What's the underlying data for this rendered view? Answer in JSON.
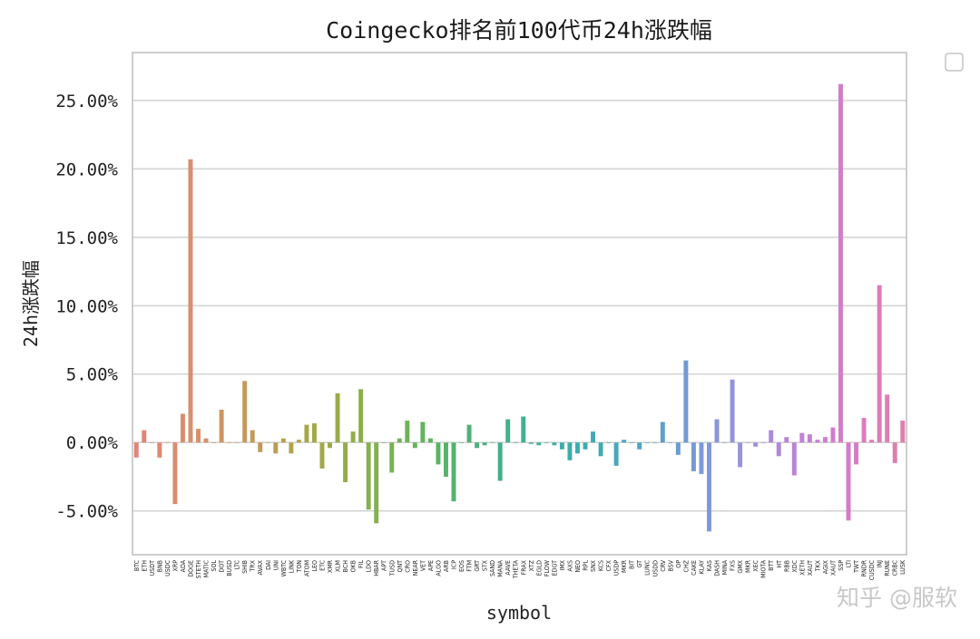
{
  "watermark": "知乎 @服软",
  "chart_data": {
    "type": "bar",
    "title": "Coingecko排名前100代币24h涨跌幅",
    "xlabel": "symbol",
    "ylabel": "24h涨跌幅",
    "ylim": [
      -8.2,
      28.5
    ],
    "yticks": [
      -5,
      0,
      5,
      10,
      15,
      20,
      25
    ],
    "ytick_labels": [
      "-5.00%",
      "0.00%",
      "5.00%",
      "10.00%",
      "15.00%",
      "20.00%",
      "25.00%"
    ],
    "grid": true,
    "legend": "top-right (empty)",
    "categories": [
      "BTC",
      "ETH",
      "USDT",
      "BNB",
      "USDC",
      "XRP",
      "ADA",
      "DOGE",
      "STETH",
      "MATIC",
      "SOL",
      "DOT",
      "BUSD",
      "LTC",
      "SHIB",
      "TRX",
      "AVAX",
      "DAI",
      "UNI",
      "WBTC",
      "LINK",
      "TON",
      "ATOM",
      "LEO",
      "ETC",
      "XMR",
      "XLM",
      "BCH",
      "OKB",
      "FIL",
      "LDO",
      "HBAR",
      "APT",
      "TUSD",
      "QNT",
      "CRO",
      "NEAR",
      "VET",
      "APE",
      "ALGO",
      "ARB",
      "ICP",
      "EOS",
      "FTM",
      "GRT",
      "STX",
      "SAND",
      "MANA",
      "AAVE",
      "THETA",
      "FRAX",
      "XTZ",
      "EGLD",
      "FLOW",
      "EDGT",
      "IMX",
      "AXS",
      "NEO",
      "RPL",
      "SNX",
      "KCS",
      "CFX",
      "USDP",
      "MKR",
      "BIT",
      "GT",
      "LUNC",
      "USDD",
      "CRV",
      "BSV",
      "OP",
      "CHZ",
      "CAKE",
      "KLAY",
      "KAS",
      "DASH",
      "MINA",
      "FXS",
      "GMX",
      "MKR",
      "XEC",
      "MIOTA",
      "BTT",
      "HT",
      "RBB",
      "XDC",
      "XETH",
      "XAUT",
      "TKX",
      "AGIX",
      "XAUT",
      "SSP",
      "LTI",
      "TWT",
      "RNDR",
      "CUSDC",
      "INJ",
      "RUNE",
      "CRBC",
      "LUSK"
    ],
    "values": [
      -1.1,
      0.9,
      0.0,
      -1.1,
      0.0,
      -4.5,
      2.1,
      20.7,
      1.0,
      0.3,
      0.0,
      2.4,
      0.0,
      0.0,
      4.5,
      0.9,
      -0.7,
      0.0,
      -0.8,
      0.3,
      -0.8,
      0.2,
      1.3,
      1.4,
      -1.9,
      -0.4,
      3.6,
      -2.9,
      0.8,
      3.9,
      -4.9,
      -5.9,
      0.0,
      -2.2,
      0.3,
      1.6,
      -0.4,
      1.5,
      0.3,
      -1.6,
      -2.5,
      -4.3,
      0.0,
      1.3,
      -0.4,
      -0.2,
      0.0,
      -2.8,
      1.7,
      0.0,
      1.9,
      -0.1,
      -0.2,
      0.0,
      -0.2,
      -0.5,
      -1.3,
      -0.8,
      -0.5,
      0.8,
      -1.0,
      0.0,
      -1.7,
      0.2,
      0.0,
      -0.5,
      0.0,
      0.0,
      1.5,
      0.0,
      -0.9,
      6.0,
      -2.1,
      -2.3,
      -6.5,
      1.7,
      0.0,
      4.6,
      -1.8,
      0.0,
      -0.3,
      0.0,
      0.9,
      -1.0,
      0.4,
      -2.4,
      0.7,
      0.6,
      0.2,
      0.4,
      1.1,
      26.2,
      -5.7,
      -1.6,
      1.8,
      0.2,
      11.5,
      3.5,
      -1.5,
      1.6
    ]
  }
}
